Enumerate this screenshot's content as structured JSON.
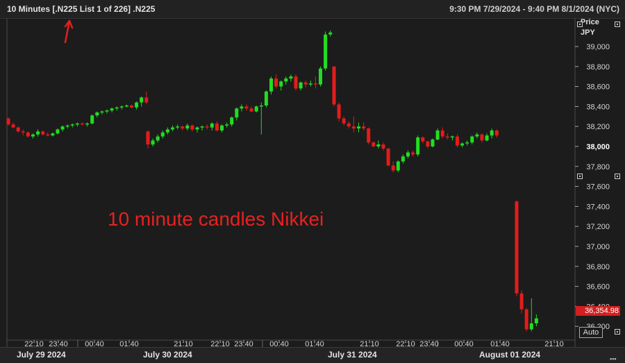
{
  "header": {
    "title": "10 Minutes [.N225 List 1 of 226] .N225",
    "range": "9:30 PM 7/29/2024 - 9:40 PM 8/1/2024 (NYC)"
  },
  "annotation": "10 minute candles Nikkei",
  "axis": {
    "price_label_line1": "Price",
    "price_label_line2": "JPY",
    "last_value": "36,354.98",
    "auto_label": "Auto"
  },
  "x_time_ticks": [
    "22:10",
    "23:40",
    "00:40",
    "01:40",
    "21:10",
    "22:10",
    "23:40",
    "00:40",
    "01:40",
    "21:10",
    "22:10",
    "23:40",
    "00:40",
    "01:40",
    "21:10"
  ],
  "date_labels": [
    "July 29 2024",
    "July 30 2024",
    "July 31 2024",
    "August 01 2024"
  ],
  "colors": {
    "up": "#22dd22",
    "down": "#e41b1b",
    "background": "#1c1c1c",
    "grid": "#3a3a3a"
  },
  "chart_data": {
    "type": "candlestick",
    "title": "10 Minutes [.N225 List 1 of 226] .N225",
    "ylabel": "Price JPY",
    "ylim": [
      36050,
      39300
    ],
    "y_ticks": [
      "39,000",
      "38,800",
      "38,600",
      "38,400",
      "38,200",
      "38,000",
      "37,800",
      "37,600",
      "37,400",
      "37,200",
      "37,000",
      "36,800",
      "36,600",
      "36,400",
      "36,200"
    ],
    "y_tick_values": [
      39000,
      38800,
      38600,
      38400,
      38200,
      38000,
      37800,
      37600,
      37400,
      37200,
      37000,
      36800,
      36600,
      36400,
      36200
    ],
    "grid": false,
    "sessions": [
      {
        "date": "July 29 2024",
        "candles": [
          [
            38280,
            38290,
            38210,
            38220
          ],
          [
            38220,
            38240,
            38180,
            38190
          ],
          [
            38190,
            38200,
            38140,
            38150
          ],
          [
            38150,
            38170,
            38110,
            38140
          ],
          [
            38140,
            38150,
            38090,
            38100
          ],
          [
            38100,
            38130,
            38080,
            38120
          ],
          [
            38120,
            38170,
            38100,
            38150
          ],
          [
            38150,
            38160,
            38110,
            38120
          ],
          [
            38120,
            38140,
            38100,
            38110
          ],
          [
            38110,
            38140,
            38100,
            38130
          ],
          [
            38130,
            38180,
            38120,
            38170
          ],
          [
            38170,
            38210,
            38150,
            38200
          ],
          [
            38200,
            38220,
            38180,
            38210
          ],
          [
            38210,
            38230,
            38190,
            38220
          ],
          [
            38220,
            38240,
            38200,
            38230
          ],
          [
            38230,
            38240,
            38210,
            38220
          ],
          [
            38220,
            38240,
            38200,
            38230
          ],
          [
            38230,
            38320,
            38220,
            38310
          ],
          [
            38310,
            38350,
            38290,
            38340
          ],
          [
            38340,
            38360,
            38320,
            38350
          ],
          [
            38350,
            38370,
            38330,
            38360
          ],
          [
            38360,
            38390,
            38340,
            38380
          ],
          [
            38380,
            38400,
            38360,
            38390
          ],
          [
            38390,
            38410,
            38370,
            38400
          ],
          [
            38400,
            38420,
            38390,
            38410
          ],
          [
            38410,
            38420,
            38380,
            38390
          ],
          [
            38390,
            38450,
            38370,
            38440
          ],
          [
            38440,
            38500,
            38400,
            38490
          ],
          [
            38490,
            38550,
            38420,
            38440
          ]
        ]
      },
      {
        "date": "July 30 2024",
        "candles": [
          [
            38150,
            38160,
            37980,
            38020
          ],
          [
            38020,
            38080,
            38000,
            38060
          ],
          [
            38060,
            38120,
            38040,
            38100
          ],
          [
            38100,
            38160,
            38080,
            38140
          ],
          [
            38140,
            38190,
            38120,
            38170
          ],
          [
            38170,
            38210,
            38150,
            38190
          ],
          [
            38190,
            38220,
            38170,
            38200
          ],
          [
            38200,
            38210,
            38160,
            38180
          ],
          [
            38180,
            38230,
            38160,
            38210
          ],
          [
            38210,
            38220,
            38150,
            38170
          ],
          [
            38170,
            38200,
            38140,
            38190
          ],
          [
            38190,
            38210,
            38160,
            38200
          ],
          [
            38200,
            38220,
            38170,
            38190
          ],
          [
            38190,
            38240,
            38160,
            38230
          ],
          [
            38230,
            38250,
            38150,
            38160
          ],
          [
            38160,
            38220,
            38140,
            38210
          ],
          [
            38210,
            38240,
            38190,
            38220
          ],
          [
            38220,
            38300,
            38200,
            38290
          ],
          [
            38290,
            38390,
            38260,
            38380
          ],
          [
            38380,
            38420,
            38350,
            38400
          ],
          [
            38400,
            38420,
            38360,
            38380
          ],
          [
            38380,
            38400,
            38340,
            38350
          ],
          [
            38350,
            38410,
            38340,
            38400
          ],
          [
            38400,
            38440,
            38120,
            38410
          ],
          [
            38410,
            38560,
            38390,
            38550
          ],
          [
            38550,
            38700,
            38520,
            38680
          ],
          [
            38680,
            38720,
            38580,
            38600
          ],
          [
            38600,
            38660,
            38560,
            38650
          ],
          [
            38650,
            38700,
            38620,
            38680
          ],
          [
            38680,
            38720,
            38650,
            38700
          ],
          [
            38700,
            38720,
            38560,
            38580
          ],
          [
            38580,
            38650,
            38560,
            38640
          ],
          [
            38640,
            38660,
            38590,
            38620
          ],
          [
            38620,
            38660,
            38600,
            38630
          ],
          [
            38630,
            38700,
            38580,
            38620
          ],
          [
            38620,
            38800,
            38600,
            38780
          ],
          [
            38780,
            39150,
            38760,
            39120
          ],
          [
            39120,
            39160,
            39100,
            39140
          ]
        ]
      },
      {
        "date": "July 31 2024",
        "candles": [
          [
            38800,
            38800,
            38400,
            38420
          ],
          [
            38420,
            38440,
            38250,
            38280
          ],
          [
            38280,
            38300,
            38210,
            38230
          ],
          [
            38230,
            38250,
            38180,
            38200
          ],
          [
            38200,
            38300,
            38140,
            38180
          ],
          [
            38180,
            38240,
            38140,
            38200
          ],
          [
            38200,
            38240,
            38160,
            38180
          ],
          [
            38180,
            38190,
            38020,
            38040
          ],
          [
            38040,
            38050,
            37990,
            38000
          ],
          [
            38000,
            38060,
            37980,
            38020
          ],
          [
            38020,
            38040,
            37960,
            37980
          ],
          [
            37980,
            37980,
            37800,
            37810
          ],
          [
            37810,
            37850,
            37740,
            37760
          ],
          [
            37760,
            37860,
            37740,
            37850
          ],
          [
            37850,
            37920,
            37830,
            37900
          ],
          [
            37900,
            37960,
            37880,
            37940
          ],
          [
            37940,
            37960,
            37900,
            37920
          ],
          [
            37920,
            38110,
            37900,
            38090
          ],
          [
            38090,
            38100,
            38030,
            38050
          ],
          [
            38050,
            38060,
            37980,
            38000
          ],
          [
            38000,
            38080,
            37990,
            38070
          ],
          [
            38070,
            38180,
            38060,
            38160
          ],
          [
            38160,
            38190,
            38080,
            38100
          ],
          [
            38100,
            38130,
            38070,
            38090
          ],
          [
            38090,
            38110,
            38060,
            38100
          ],
          [
            38100,
            38120,
            37990,
            38010
          ],
          [
            38010,
            38040,
            37990,
            38030
          ],
          [
            38030,
            38060,
            38010,
            38040
          ],
          [
            38040,
            38110,
            38020,
            38100
          ],
          [
            38100,
            38140,
            38080,
            38120
          ],
          [
            38120,
            38130,
            38040,
            38060
          ],
          [
            38060,
            38130,
            38050,
            38110
          ],
          [
            38110,
            38180,
            38080,
            38160
          ],
          [
            38160,
            38170,
            38090,
            38110
          ]
        ]
      },
      {
        "date": "August 01 2024",
        "candles": [
          [
            37450,
            37460,
            36500,
            36530
          ],
          [
            36530,
            36560,
            36330,
            36370
          ],
          [
            36370,
            36380,
            36150,
            36170
          ],
          [
            36170,
            36480,
            36150,
            36230
          ],
          [
            36230,
            36320,
            36200,
            36280
          ]
        ]
      }
    ],
    "last_price": 36354.98
  }
}
